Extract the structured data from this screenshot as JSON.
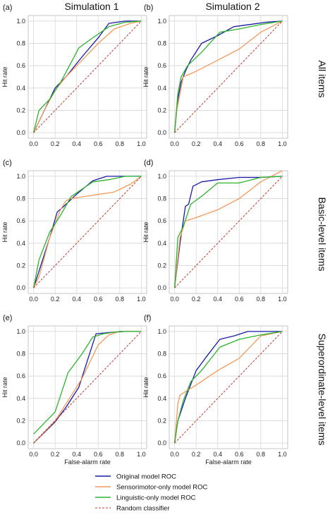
{
  "col_titles": [
    "Simulation 1",
    "Simulation 2"
  ],
  "row_titles": [
    "All items",
    "Basic-level items",
    "Superordinate-level items"
  ],
  "panel_labels": [
    "(a)",
    "(b)",
    "(c)",
    "(d)",
    "(e)",
    "(f)"
  ],
  "ylabel": "Hit rate",
  "xlabel": "False-alarm rate",
  "ticks": [
    "0.0",
    "0.2",
    "0.4",
    "0.6",
    "0.8",
    "1.0"
  ],
  "legend": [
    {
      "label": "Original model ROC",
      "color": "#1a1aa6",
      "dashed": false
    },
    {
      "label": "Sensorimotor-only model ROC",
      "color": "#f39a5a",
      "dashed": false
    },
    {
      "label": "Linguistic-only model ROC",
      "color": "#2bb52b",
      "dashed": false
    },
    {
      "label": "Random classifier",
      "color": "#c0392b",
      "dashed": true
    }
  ],
  "chart_data": [
    {
      "type": "line",
      "panel": "(a)",
      "xlim": [
        0,
        1
      ],
      "ylim": [
        0,
        1
      ],
      "series": [
        {
          "name": "Original model ROC",
          "x": [
            0,
            0.05,
            0.15,
            0.2,
            0.3,
            0.45,
            0.6,
            0.7,
            0.85,
            1.0
          ],
          "y": [
            0,
            0.1,
            0.3,
            0.4,
            0.5,
            0.68,
            0.85,
            0.98,
            1.0,
            1.0
          ]
        },
        {
          "name": "Sensorimotor-only model ROC",
          "x": [
            0,
            0.1,
            0.2,
            0.3,
            0.45,
            0.6,
            0.75,
            0.9,
            1.0
          ],
          "y": [
            0,
            0.2,
            0.38,
            0.5,
            0.65,
            0.8,
            0.93,
            0.98,
            1.0
          ]
        },
        {
          "name": "Linguistic-only model ROC",
          "x": [
            0,
            0.05,
            0.15,
            0.25,
            0.42,
            0.55,
            0.7,
            0.85,
            1.0
          ],
          "y": [
            0,
            0.2,
            0.3,
            0.45,
            0.76,
            0.85,
            0.95,
            0.99,
            1.0
          ]
        },
        {
          "name": "Random classifier",
          "x": [
            0,
            1
          ],
          "y": [
            0,
            1
          ]
        }
      ]
    },
    {
      "type": "line",
      "panel": "(b)",
      "xlim": [
        0,
        1
      ],
      "ylim": [
        0,
        1
      ],
      "series": [
        {
          "name": "Original model ROC",
          "x": [
            0,
            0.03,
            0.06,
            0.1,
            0.15,
            0.25,
            0.4,
            0.55,
            0.7,
            0.85,
            1.0
          ],
          "y": [
            0,
            0.3,
            0.45,
            0.55,
            0.65,
            0.8,
            0.87,
            0.95,
            0.97,
            0.99,
            1.0
          ]
        },
        {
          "name": "Sensorimotor-only model ROC",
          "x": [
            0,
            0.02,
            0.05,
            0.08,
            0.2,
            0.4,
            0.6,
            0.8,
            1.0
          ],
          "y": [
            0,
            0.2,
            0.35,
            0.5,
            0.55,
            0.65,
            0.75,
            0.9,
            1.0
          ]
        },
        {
          "name": "Linguistic-only model ROC",
          "x": [
            0,
            0.03,
            0.06,
            0.12,
            0.25,
            0.42,
            0.6,
            0.8,
            1.0
          ],
          "y": [
            0,
            0.35,
            0.5,
            0.6,
            0.72,
            0.9,
            0.93,
            0.97,
            1.0
          ]
        },
        {
          "name": "Random classifier",
          "x": [
            0,
            1
          ],
          "y": [
            0,
            1
          ]
        }
      ]
    },
    {
      "type": "line",
      "panel": "(c)",
      "xlim": [
        0,
        1
      ],
      "ylim": [
        0,
        1
      ],
      "series": [
        {
          "name": "Original model ROC",
          "x": [
            0,
            0.05,
            0.15,
            0.22,
            0.28,
            0.4,
            0.55,
            0.68,
            0.8,
            1.0
          ],
          "y": [
            0,
            0.15,
            0.45,
            0.68,
            0.73,
            0.84,
            0.96,
            1.0,
            1.0,
            1.0
          ]
        },
        {
          "name": "Sensorimotor-only model ROC",
          "x": [
            0,
            0.05,
            0.15,
            0.25,
            0.3,
            0.35,
            0.55,
            0.75,
            0.9,
            1.0
          ],
          "y": [
            0,
            0.1,
            0.45,
            0.7,
            0.78,
            0.8,
            0.83,
            0.86,
            0.93,
            1.0
          ]
        },
        {
          "name": "Linguistic-only model ROC",
          "x": [
            0,
            0.05,
            0.15,
            0.25,
            0.35,
            0.55,
            0.7,
            0.85,
            1.0
          ],
          "y": [
            0,
            0.25,
            0.5,
            0.65,
            0.82,
            0.95,
            0.97,
            1.0,
            1.0
          ]
        },
        {
          "name": "Random classifier",
          "x": [
            0,
            1
          ],
          "y": [
            0,
            1
          ]
        }
      ]
    },
    {
      "type": "line",
      "panel": "(d)",
      "xlim": [
        0,
        1
      ],
      "ylim": [
        0,
        1
      ],
      "series": [
        {
          "name": "Original model ROC",
          "x": [
            0,
            0.05,
            0.1,
            0.13,
            0.17,
            0.25,
            0.4,
            0.6,
            0.8,
            1.0
          ],
          "y": [
            0,
            0.4,
            0.73,
            0.75,
            0.91,
            0.95,
            0.97,
            0.99,
            0.99,
            1.0
          ]
        },
        {
          "name": "Sensorimotor-only model ROC",
          "x": [
            0,
            0.05,
            0.1,
            0.2,
            0.4,
            0.6,
            0.8,
            1.0
          ],
          "y": [
            0,
            0.45,
            0.6,
            0.63,
            0.7,
            0.8,
            0.95,
            1.05
          ]
        },
        {
          "name": "Linguistic-only model ROC",
          "x": [
            0,
            0.03,
            0.08,
            0.15,
            0.25,
            0.4,
            0.6,
            0.8,
            1.0
          ],
          "y": [
            0,
            0.45,
            0.55,
            0.75,
            0.82,
            0.94,
            0.94,
            0.99,
            1.0
          ]
        },
        {
          "name": "Random classifier",
          "x": [
            0,
            1
          ],
          "y": [
            0,
            1
          ]
        }
      ]
    },
    {
      "type": "line",
      "panel": "(e)",
      "xlim": [
        0,
        1
      ],
      "ylim": [
        0,
        1
      ],
      "series": [
        {
          "name": "Original model ROC",
          "x": [
            0,
            0.2,
            0.3,
            0.42,
            0.58,
            0.7,
            0.85,
            1.0
          ],
          "y": [
            0,
            0.19,
            0.32,
            0.5,
            0.98,
            0.99,
            1.0,
            1.0
          ]
        },
        {
          "name": "Sensorimotor-only model ROC",
          "x": [
            0,
            0.2,
            0.3,
            0.45,
            0.6,
            0.7,
            0.8,
            1.0
          ],
          "y": [
            0,
            0.2,
            0.35,
            0.58,
            0.88,
            0.97,
            1.0,
            1.0
          ]
        },
        {
          "name": "Linguistic-only model ROC",
          "x": [
            0,
            0.2,
            0.32,
            0.45,
            0.55,
            0.65,
            0.8,
            1.0
          ],
          "y": [
            0.08,
            0.28,
            0.63,
            0.8,
            0.95,
            0.98,
            1.0,
            1.0
          ]
        },
        {
          "name": "Random classifier",
          "x": [
            0,
            1
          ],
          "y": [
            0,
            1
          ]
        }
      ]
    },
    {
      "type": "line",
      "panel": "(f)",
      "xlim": [
        0,
        1
      ],
      "ylim": [
        0,
        1
      ],
      "series": [
        {
          "name": "Original model ROC",
          "x": [
            0,
            0.03,
            0.1,
            0.2,
            0.3,
            0.42,
            0.55,
            0.68,
            0.8,
            1.0
          ],
          "y": [
            0,
            0.2,
            0.4,
            0.65,
            0.78,
            0.93,
            0.96,
            1.0,
            1.0,
            1.0
          ]
        },
        {
          "name": "Sensorimotor-only model ROC",
          "x": [
            0,
            0.03,
            0.05,
            0.1,
            0.2,
            0.4,
            0.6,
            0.8,
            1.0
          ],
          "y": [
            0,
            0.35,
            0.43,
            0.46,
            0.52,
            0.65,
            0.76,
            0.96,
            1.0
          ]
        },
        {
          "name": "Linguistic-only model ROC",
          "x": [
            0,
            0.03,
            0.08,
            0.15,
            0.25,
            0.42,
            0.6,
            0.8,
            1.0
          ],
          "y": [
            0,
            0.2,
            0.38,
            0.55,
            0.65,
            0.86,
            0.93,
            0.97,
            1.0
          ]
        },
        {
          "name": "Random classifier",
          "x": [
            0,
            1
          ],
          "y": [
            0,
            1
          ]
        }
      ]
    }
  ]
}
